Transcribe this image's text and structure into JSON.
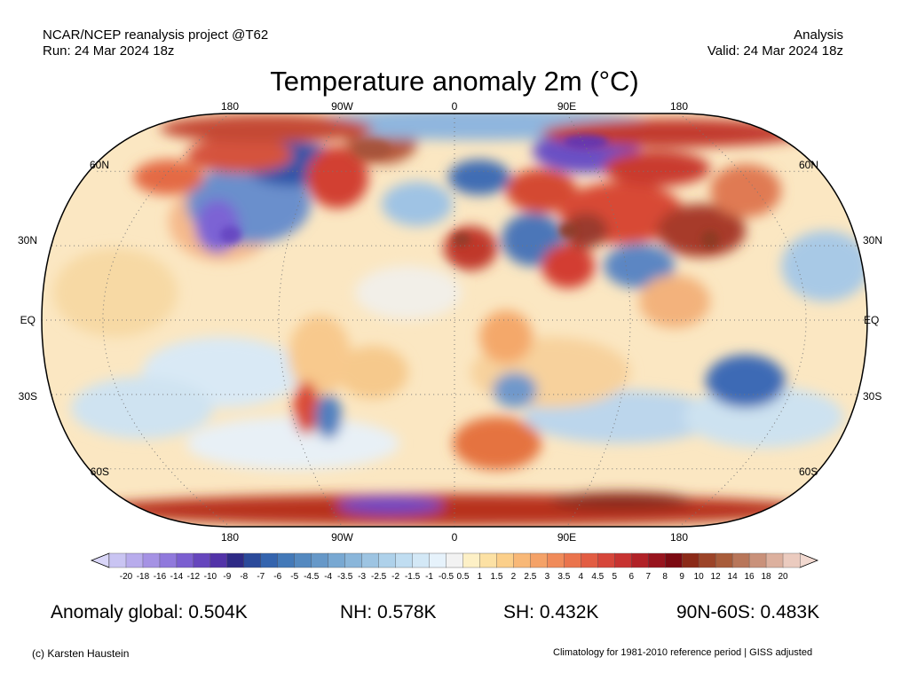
{
  "header": {
    "source": "NCAR/NCEP reanalysis project @T62",
    "run": "Run: 24 Mar 2024 18z",
    "product": "Analysis",
    "valid": "Valid: 24 Mar 2024 18z"
  },
  "title": "Temperature anomaly 2m (°C)",
  "map": {
    "projection": "Robinson",
    "lon_labels_top": [
      "180",
      "90W",
      "0",
      "90E",
      "180"
    ],
    "lon_labels_bottom": [
      "180",
      "90W",
      "0",
      "90E",
      "180"
    ],
    "lat_labels_left": [
      "60N",
      "30N",
      "EQ",
      "30S",
      "60S"
    ],
    "lat_labels_right": [
      "60N",
      "30N",
      "EQ",
      "30S",
      "60S"
    ],
    "gridlines": "dotted"
  },
  "colorbar": {
    "labels": [
      "-20",
      "-18",
      "-16",
      "-14",
      "-12",
      "-10",
      "-9",
      "-8",
      "-7",
      "-6",
      "-5",
      "-4.5",
      "-4",
      "-3.5",
      "-3",
      "-2.5",
      "-2",
      "-1.5",
      "-1",
      "-0.5",
      "0.5",
      "1",
      "1.5",
      "2",
      "2.5",
      "3",
      "3.5",
      "4",
      "4.5",
      "5",
      "6",
      "7",
      "8",
      "9",
      "10",
      "12",
      "14",
      "16",
      "18",
      "20"
    ],
    "colors": [
      "#c9c4f2",
      "#b8acec",
      "#a592e4",
      "#9079dc",
      "#7b5fd0",
      "#6646bd",
      "#5233a8",
      "#2e2a86",
      "#2b4a9a",
      "#3464ae",
      "#4379b8",
      "#5489c0",
      "#6698c8",
      "#78a8d2",
      "#8ab6da",
      "#9dc4e2",
      "#aed1ea",
      "#c0ddf1",
      "#d3e8f6",
      "#e6f2fb",
      "#f2f2f2",
      "#fdf0c6",
      "#fce1a4",
      "#fbcf8a",
      "#f8b877",
      "#f4a268",
      "#f08b5a",
      "#ea744d",
      "#e25d43",
      "#d6463a",
      "#c73331",
      "#b12227",
      "#98141e",
      "#7c0a12",
      "#8b2a18",
      "#9c4428",
      "#a85c3a",
      "#b8765a",
      "#c9917a",
      "#dcb09e",
      "#ebcbbf"
    ],
    "under_color": "#d9d6f8",
    "over_color": "#f2d9d0"
  },
  "stats": {
    "global": "Anomaly global: 0.504K",
    "nh": "NH: 0.578K",
    "sh": "SH: 0.432K",
    "arctic": "90N-60S: 0.483K"
  },
  "footer": {
    "credit": "(c) Karsten Haustein",
    "note": "Climatology for 1981-2010 reference period | GISS adjusted"
  }
}
